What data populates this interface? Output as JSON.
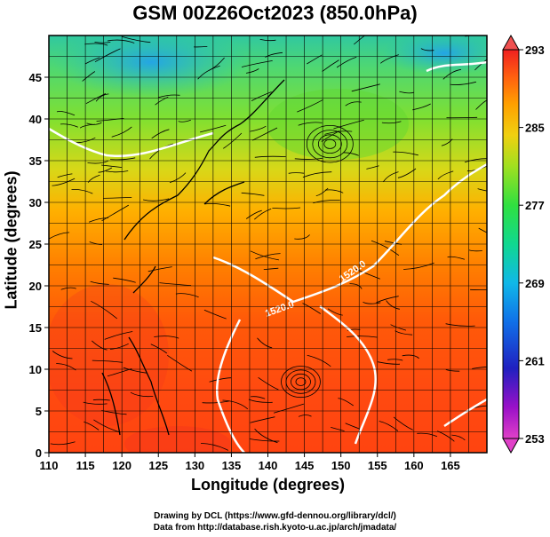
{
  "title": "GSM 00Z26Oct2023 (850.0hPa)",
  "xlabel": "Longitude (degrees)",
  "ylabel": "Latitude  (degrees)",
  "credits": {
    "line1": "Drawing by DCL (https://www.gfd-dennou.org/library/dcl/)",
    "line2": "Data from http://database.rish.kyoto-u.ac.jp/arch/jmadata/"
  },
  "map": {
    "lon_range": [
      110,
      170
    ],
    "lat_range": [
      0,
      50
    ],
    "lon_ticks": [
      110,
      115,
      120,
      125,
      130,
      135,
      140,
      145,
      150,
      155,
      160,
      165
    ],
    "lat_ticks": [
      0,
      5,
      10,
      15,
      20,
      25,
      30,
      35,
      40,
      45
    ],
    "contour_label": "1520.0"
  },
  "colorbar": {
    "min": 253,
    "max": 293,
    "tick_labels": [
      "253",
      "261",
      "269",
      "277",
      "285",
      "293"
    ],
    "colors": [
      "#e040c8",
      "#8a10c0",
      "#2020c0",
      "#1060e0",
      "#10a8e8",
      "#10d8b0",
      "#30e040",
      "#80e020",
      "#d8e010",
      "#ffb000",
      "#ff7000",
      "#ff4010",
      "#f02020"
    ]
  }
}
